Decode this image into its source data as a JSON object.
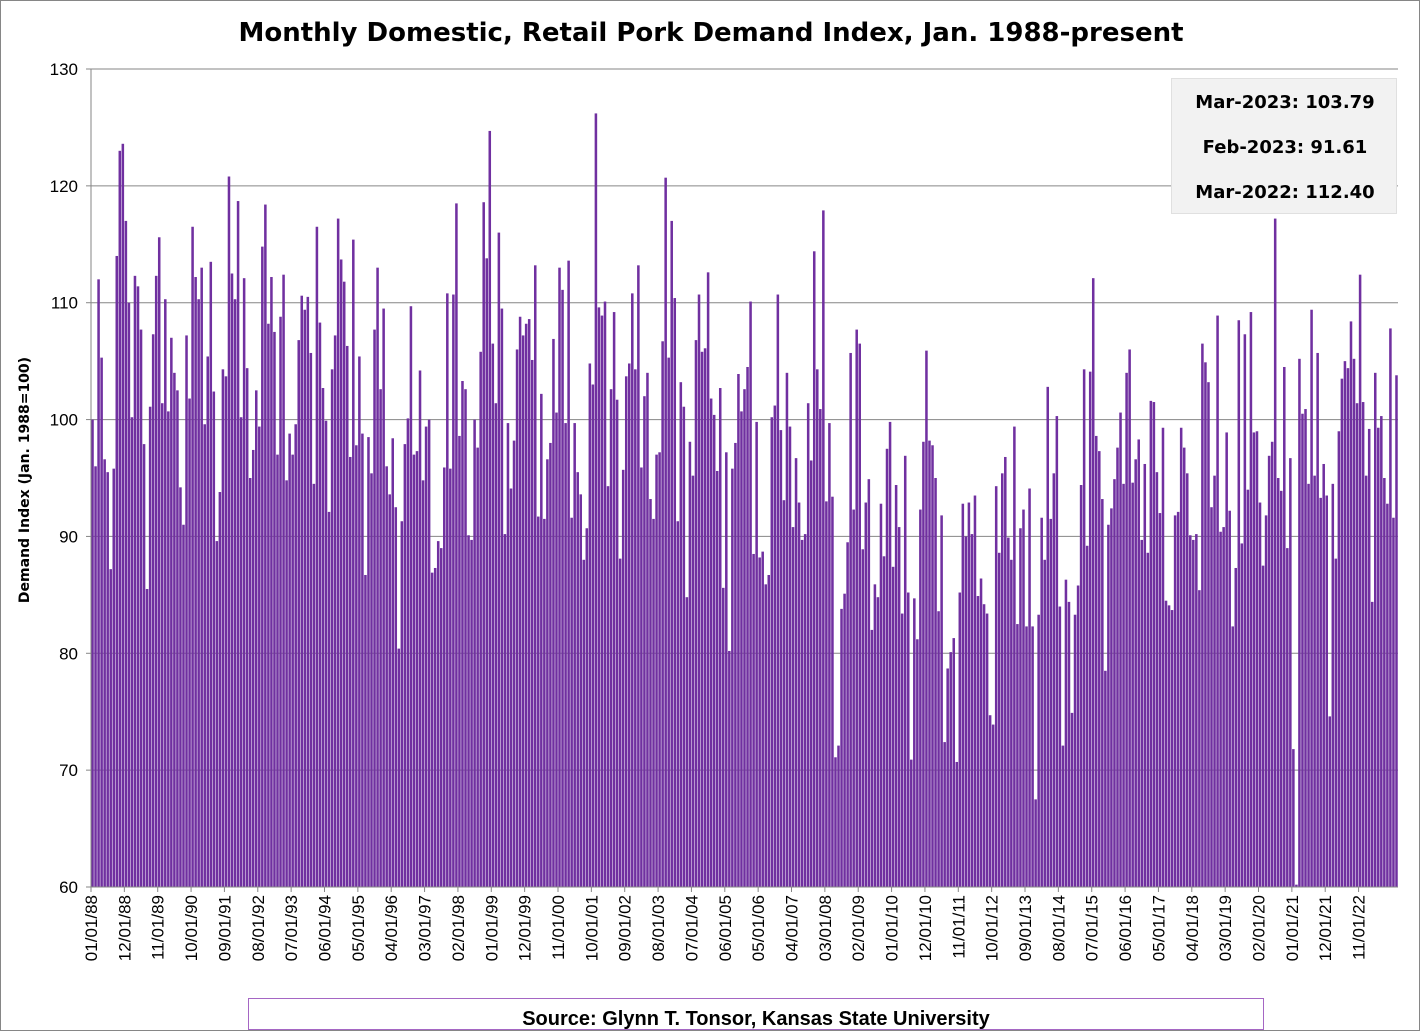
{
  "chart_data": {
    "type": "bar",
    "title": "Monthly Domestic, Retail Pork Demand Index, Jan. 1988-present",
    "ylabel": "Demand Index (Jan. 1988=100)",
    "xlabel": "",
    "ylim": [
      60,
      130
    ],
    "yticks": [
      60,
      70,
      80,
      90,
      100,
      110,
      120,
      130
    ],
    "grid": true,
    "bar_color": "#7030a0",
    "x_tick_labels": [
      "01/01/88",
      "12/01/88",
      "11/01/89",
      "10/01/90",
      "09/01/91",
      "08/01/92",
      "07/01/93",
      "06/01/94",
      "05/01/95",
      "04/01/96",
      "03/01/97",
      "02/01/98",
      "01/01/99",
      "12/01/99",
      "11/01/00",
      "10/01/01",
      "09/01/02",
      "08/01/03",
      "07/01/04",
      "06/01/05",
      "05/01/06",
      "04/01/07",
      "03/01/08",
      "02/01/09",
      "01/01/10",
      "12/01/10",
      "11/01/11",
      "10/01/12",
      "09/01/13",
      "08/01/14",
      "07/01/15",
      "06/01/16",
      "05/01/17",
      "04/01/18",
      "03/01/19",
      "02/01/20",
      "01/01/21",
      "12/01/21",
      "11/01/22"
    ],
    "start_month": "01/01/88",
    "end_month": "03/01/23",
    "values": [
      100.0,
      96.0,
      112.0,
      105.3,
      96.6,
      95.5,
      87.2,
      95.8,
      114.0,
      123.0,
      123.6,
      117.0,
      110.0,
      100.2,
      112.3,
      111.4,
      107.7,
      97.9,
      85.5,
      101.1,
      107.3,
      112.3,
      115.6,
      101.4,
      110.3,
      100.7,
      107.0,
      104.0,
      102.5,
      94.2,
      91.0,
      107.2,
      101.8,
      116.5,
      112.2,
      110.3,
      113.0,
      99.6,
      105.4,
      113.5,
      102.4,
      89.6,
      93.8,
      104.3,
      103.7,
      120.8,
      112.5,
      110.3,
      118.7,
      100.2,
      112.1,
      104.4,
      95.0,
      97.4,
      102.5,
      99.4,
      114.8,
      118.4,
      108.2,
      112.2,
      107.5,
      97.0,
      108.8,
      112.4,
      94.8,
      98.8,
      97.0,
      99.6,
      106.8,
      110.6,
      109.4,
      110.5,
      105.7,
      94.5,
      116.5,
      108.3,
      102.7,
      99.9,
      92.1,
      104.3,
      107.2,
      117.2,
      113.7,
      111.8,
      106.3,
      96.8,
      115.4,
      97.8,
      105.4,
      98.8,
      86.7,
      98.5,
      95.4,
      107.7,
      113.0,
      102.6,
      109.5,
      96.0,
      93.6,
      98.4,
      92.5,
      80.4,
      91.3,
      97.9,
      100.1,
      109.7,
      97.0,
      97.3,
      104.2,
      94.8,
      99.4,
      100.0,
      86.9,
      87.3,
      89.6,
      89.0,
      95.9,
      110.8,
      95.8,
      110.7,
      118.5,
      98.6,
      103.3,
      102.6,
      90.1,
      89.7,
      100.0,
      97.6,
      105.8,
      118.6,
      113.8,
      124.7,
      106.5,
      101.4,
      116.0,
      109.5,
      90.2,
      99.7,
      94.1,
      98.2,
      106.0,
      108.8,
      107.2,
      108.2,
      108.6,
      105.1,
      113.2,
      91.7,
      102.2,
      91.5,
      96.6,
      98.0,
      106.9,
      100.6,
      113.0,
      111.1,
      99.7,
      113.6,
      91.6,
      99.7,
      95.5,
      93.6,
      88.0,
      90.7,
      104.8,
      103.0,
      126.2,
      109.6,
      108.9,
      110.1,
      94.3,
      102.6,
      109.2,
      101.7,
      88.1,
      95.7,
      103.7,
      104.8,
      110.8,
      104.3,
      113.2,
      95.9,
      102.0,
      104.0,
      93.2,
      91.5,
      97.0,
      97.2,
      106.7,
      120.7,
      105.3,
      117.0,
      110.4,
      91.3,
      103.2,
      101.1,
      84.8,
      98.1,
      95.2,
      106.8,
      110.7,
      105.8,
      106.1,
      112.6,
      101.8,
      100.4,
      95.6,
      102.7,
      85.6,
      97.2,
      80.2,
      95.8,
      98.0,
      103.9,
      100.7,
      102.6,
      104.5,
      110.1,
      88.5,
      99.8,
      88.2,
      88.7,
      85.9,
      86.7,
      100.2,
      101.2,
      110.7,
      99.1,
      93.1,
      104.0,
      99.4,
      90.8,
      96.7,
      92.9,
      89.7,
      90.2,
      101.4,
      96.5,
      114.4,
      104.3,
      100.9,
      117.9,
      93.0,
      99.7,
      93.4,
      71.1,
      72.1,
      83.8,
      85.1,
      89.5,
      105.7,
      92.3,
      107.7,
      106.5,
      88.9,
      92.9,
      94.9,
      82.0,
      85.9,
      84.8,
      92.8,
      88.3,
      97.5,
      99.8,
      87.4,
      94.4,
      90.8,
      83.4,
      96.9,
      85.2,
      70.9,
      84.7,
      81.2,
      92.3,
      98.1,
      105.9,
      98.2,
      97.8,
      95.0,
      83.6,
      91.8,
      72.4,
      78.7,
      80.1,
      81.3,
      70.7,
      85.2,
      92.8,
      90.0,
      92.9,
      90.2,
      93.5,
      84.9,
      86.4,
      84.2,
      83.4,
      74.7,
      73.9,
      94.3,
      88.6,
      95.4,
      96.8,
      89.9,
      88.0,
      99.4,
      82.5,
      90.7,
      92.3,
      82.3,
      94.1,
      82.3,
      67.5,
      83.3,
      91.6,
      88.0,
      102.8,
      91.5,
      95.4,
      100.3,
      84.0,
      72.1,
      86.3,
      84.4,
      74.9,
      83.3,
      85.8,
      94.4,
      104.3,
      89.2,
      104.1,
      112.1,
      98.6,
      97.3,
      93.2,
      78.5,
      91.0,
      92.4,
      94.9,
      97.6,
      100.6,
      94.5,
      104.0,
      106.0,
      94.6,
      96.6,
      98.3,
      89.7,
      96.2,
      88.6,
      101.6,
      101.5,
      95.5,
      92.0,
      99.3,
      84.5,
      84.1,
      83.7,
      91.8,
      92.1,
      99.3,
      97.6,
      95.4,
      90.1,
      89.7,
      90.2,
      85.4,
      106.5,
      104.9,
      103.2,
      92.5,
      95.2,
      108.9,
      90.4,
      90.8,
      98.9,
      92.2,
      82.3,
      87.3,
      108.5,
      89.4,
      107.3,
      94.0,
      109.2,
      98.9,
      99.0,
      92.9,
      87.5,
      91.8,
      96.9,
      98.1,
      117.2,
      95.0,
      93.9,
      104.5,
      89.0,
      96.7,
      71.8,
      60.2,
      105.2,
      100.5,
      100.9,
      94.5,
      109.4,
      95.2,
      105.7,
      93.3,
      96.2,
      93.5,
      74.6,
      94.5,
      88.1,
      99.0,
      103.5,
      105.0,
      104.4,
      108.4,
      105.2,
      101.4,
      112.4,
      101.5,
      95.2,
      99.2,
      84.4,
      104.0,
      99.3,
      100.3,
      95.0,
      92.8,
      107.8,
      91.6,
      103.79
    ]
  },
  "info_box": {
    "rows": [
      "Mar-2023: 103.79",
      "Feb-2023: 91.61",
      "Mar-2022: 112.40"
    ]
  },
  "source_text": "Source: Glynn T. Tonsor, Kansas State University"
}
